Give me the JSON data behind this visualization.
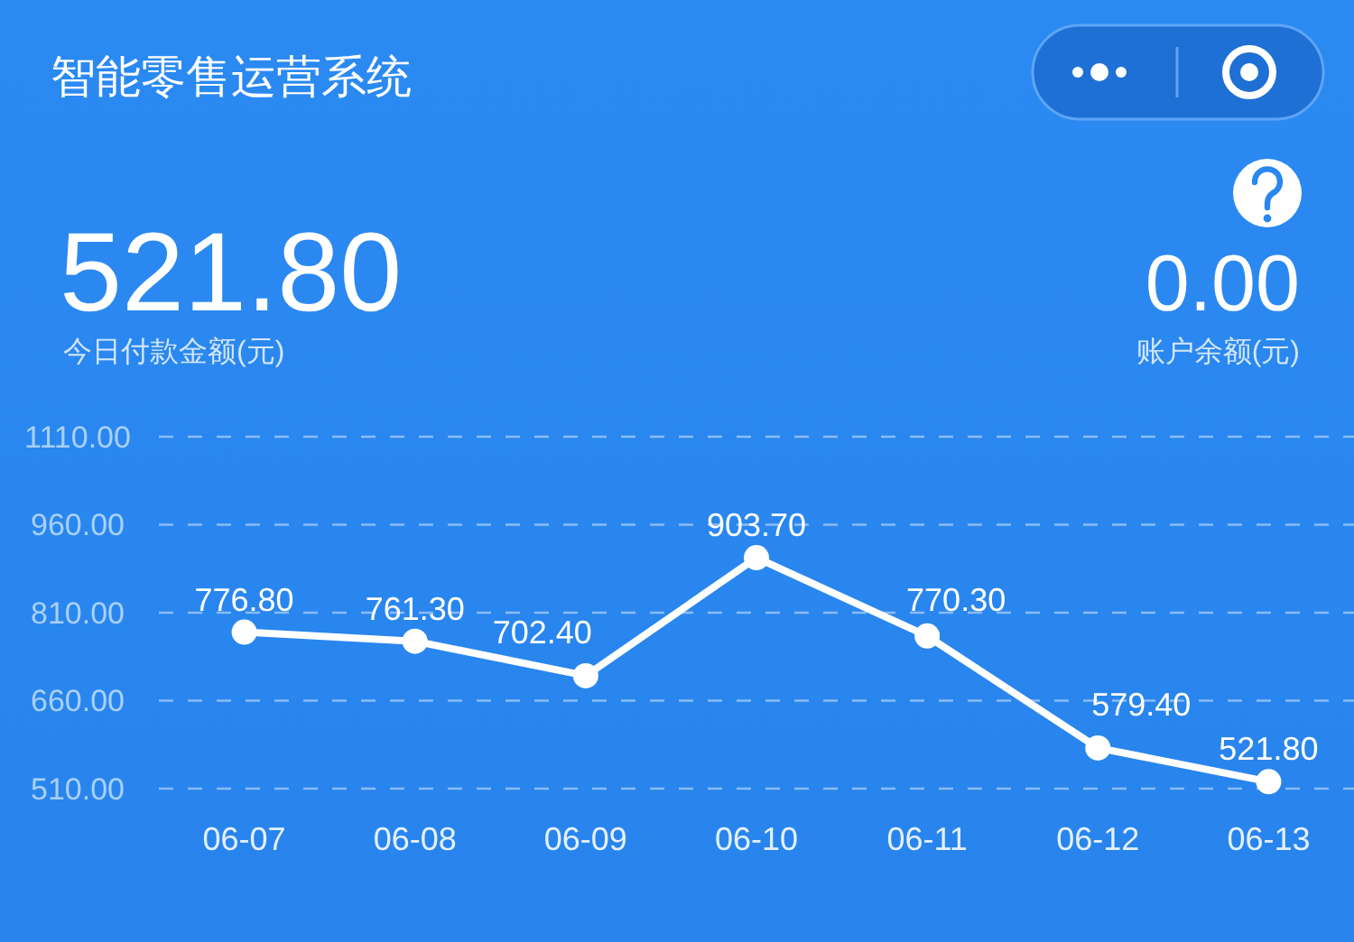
{
  "chart_data": {
    "type": "line",
    "title": "智能零售运营系统",
    "annotations": [
      "521.80",
      "今日付款金额(元)",
      "0.00",
      "账户余额(元)"
    ],
    "categories": [
      "06-07",
      "06-08",
      "06-09",
      "06-10",
      "06-11",
      "06-12",
      "06-13"
    ],
    "values": [
      776.8,
      761.3,
      702.4,
      903.7,
      770.3,
      579.4,
      521.8
    ],
    "value_labels": [
      "776.80",
      "761.30",
      "702.40",
      "903.70",
      "770.30",
      "579.40",
      "521.80"
    ],
    "color": "#ffffff",
    "ylim": [
      510,
      1110
    ],
    "yticks": [
      {
        "value": 510,
        "label": "510.00"
      },
      {
        "value": 660,
        "label": "660.00"
      },
      {
        "value": 810,
        "label": "810.00"
      },
      {
        "value": 960,
        "label": "960.00"
      },
      {
        "value": 1110,
        "label": "1110.00"
      }
    ],
    "grid": "y",
    "marker": "circle",
    "line_style": "solid"
  }
}
